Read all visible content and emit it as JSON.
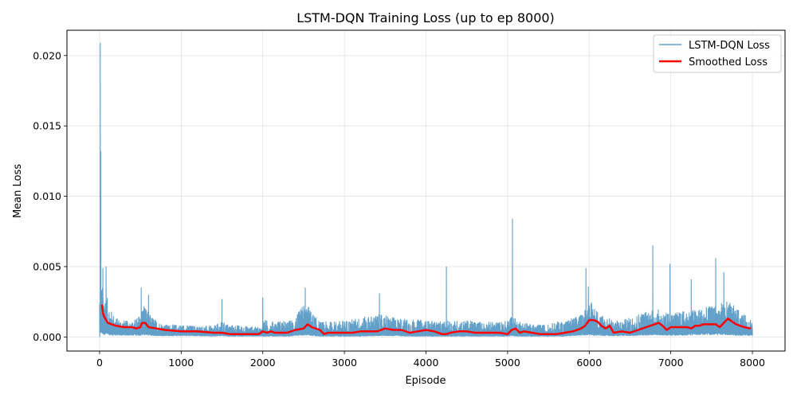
{
  "chart_data": {
    "type": "line",
    "title": "LSTM-DQN Training Loss (up to ep 8000)",
    "xlabel": "Episode",
    "ylabel": "Mean Loss",
    "xlim": [
      -400,
      8400
    ],
    "ylim": [
      -0.001,
      0.0218
    ],
    "xticks": [
      0,
      1000,
      2000,
      3000,
      4000,
      5000,
      6000,
      7000,
      8000
    ],
    "xtick_labels": [
      "0",
      "1000",
      "2000",
      "3000",
      "4000",
      "5000",
      "6000",
      "7000",
      "8000"
    ],
    "yticks": [
      0.0,
      0.005,
      0.01,
      0.015,
      0.02
    ],
    "ytick_labels": [
      "0.000",
      "0.005",
      "0.010",
      "0.015",
      "0.020"
    ],
    "grid": true,
    "legend_position": "top-right",
    "series": [
      {
        "name": "LSTM-DQN Loss",
        "color": "#1f77b4",
        "alpha": 0.7,
        "band": {
          "x": [
            0,
            10,
            20,
            50,
            100,
            150,
            200,
            300,
            400,
            500,
            540,
            600,
            700,
            800,
            1000,
            1200,
            1400,
            1500,
            1600,
            1800,
            1990,
            2000,
            2100,
            2200,
            2300,
            2400,
            2500,
            2550,
            2600,
            2700,
            2800,
            3000,
            3200,
            3400,
            3500,
            3600,
            3800,
            4000,
            4200,
            4300,
            4500,
            4700,
            4900,
            5000,
            5050,
            5100,
            5200,
            5300,
            5400,
            5500,
            5600,
            5700,
            5800,
            5900,
            6000,
            6050,
            6100,
            6200,
            6300,
            6400,
            6500,
            6600,
            6700,
            6800,
            6900,
            7000,
            7100,
            7200,
            7300,
            7400,
            7500,
            7600,
            7700,
            7800,
            7900,
            8000
          ],
          "high": [
            0.0034,
            0.004,
            0.0038,
            0.0035,
            0.0027,
            0.0018,
            0.0014,
            0.0012,
            0.0011,
            0.0016,
            0.0026,
            0.0017,
            0.0012,
            0.0009,
            0.0009,
            0.0008,
            0.0008,
            0.0011,
            0.0009,
            0.0008,
            0.0007,
            0.0013,
            0.0011,
            0.0012,
            0.0011,
            0.0014,
            0.0024,
            0.0023,
            0.0018,
            0.0011,
            0.0011,
            0.0012,
            0.0014,
            0.0016,
            0.0016,
            0.0014,
            0.0013,
            0.0012,
            0.0011,
            0.0012,
            0.0012,
            0.0011,
            0.0011,
            0.0012,
            0.0017,
            0.0013,
            0.0011,
            0.0009,
            0.0009,
            0.0009,
            0.0011,
            0.0012,
            0.0014,
            0.0016,
            0.0026,
            0.0024,
            0.0019,
            0.0015,
            0.0012,
            0.0012,
            0.0014,
            0.0017,
            0.0019,
            0.0021,
            0.0018,
            0.0017,
            0.0018,
            0.0019,
            0.002,
            0.0021,
            0.0022,
            0.0024,
            0.0026,
            0.0021,
            0.0016,
            0.0014
          ],
          "low": [
            0.0012,
            0.0007,
            0.0006,
            0.0005,
            0.0004,
            0.0003,
            0.0003,
            0.0003,
            0.0003,
            0.0003,
            0.0004,
            0.0003,
            0.0002,
            0.0002,
            0.0002,
            0.0002,
            0.0001,
            0.0002,
            0.0001,
            0.0001,
            0.0001,
            0.0001,
            0.0001,
            0.0001,
            0.0001,
            0.0002,
            0.0003,
            0.0003,
            0.0002,
            0.0001,
            0.0001,
            0.0001,
            0.0001,
            0.0002,
            0.0002,
            0.0002,
            0.0001,
            0.0001,
            0.0001,
            0.0001,
            0.0001,
            0.0001,
            0.0001,
            0.0001,
            0.0002,
            0.0001,
            0.0001,
            0.0001,
            0.0001,
            0.0001,
            0.0001,
            0.0001,
            0.0002,
            0.0003,
            0.0004,
            0.0003,
            0.0003,
            0.0002,
            0.0002,
            0.0002,
            0.0002,
            0.0003,
            0.0003,
            0.0004,
            0.0003,
            0.0003,
            0.0003,
            0.0003,
            0.0004,
            0.0004,
            0.0004,
            0.0004,
            0.0004,
            0.0003,
            0.0003,
            0.0002
          ]
        },
        "spikes": [
          {
            "x": 2,
            "y": 0.0
          },
          {
            "x": 8,
            "y": 0.0209
          },
          {
            "x": 14,
            "y": 0.0132
          },
          {
            "x": 40,
            "y": 0.0049
          },
          {
            "x": 80,
            "y": 0.005
          },
          {
            "x": 510,
            "y": 0.0035
          },
          {
            "x": 600,
            "y": 0.003
          },
          {
            "x": 1500,
            "y": 0.0027
          },
          {
            "x": 2000,
            "y": 0.0028
          },
          {
            "x": 2520,
            "y": 0.0035
          },
          {
            "x": 3430,
            "y": 0.0031
          },
          {
            "x": 4250,
            "y": 0.005
          },
          {
            "x": 5060,
            "y": 0.0084
          },
          {
            "x": 5960,
            "y": 0.0049
          },
          {
            "x": 5990,
            "y": 0.0036
          },
          {
            "x": 6780,
            "y": 0.0065
          },
          {
            "x": 6990,
            "y": 0.0052
          },
          {
            "x": 7250,
            "y": 0.0041
          },
          {
            "x": 7550,
            "y": 0.0056
          },
          {
            "x": 7650,
            "y": 0.0046
          }
        ]
      },
      {
        "name": "Smoothed Loss",
        "color": "#ff0000",
        "x": [
          30,
          40,
          60,
          100,
          150,
          200,
          300,
          400,
          450,
          500,
          520,
          560,
          600,
          700,
          800,
          1000,
          1200,
          1400,
          1500,
          1600,
          1800,
          1950,
          2000,
          2050,
          2100,
          2150,
          2200,
          2300,
          2400,
          2500,
          2550,
          2600,
          2700,
          2750,
          2800,
          2900,
          3000,
          3100,
          3200,
          3300,
          3400,
          3500,
          3600,
          3700,
          3800,
          3900,
          4000,
          4100,
          4200,
          4250,
          4300,
          4400,
          4500,
          4600,
          4700,
          4800,
          4900,
          5000,
          5050,
          5100,
          5150,
          5200,
          5300,
          5400,
          5500,
          5600,
          5700,
          5800,
          5900,
          5950,
          6000,
          6050,
          6100,
          6150,
          6200,
          6250,
          6300,
          6400,
          6500,
          6600,
          6700,
          6800,
          6850,
          6900,
          6950,
          7000,
          7050,
          7100,
          7200,
          7250,
          7300,
          7350,
          7400,
          7450,
          7500,
          7550,
          7600,
          7650,
          7700,
          7750,
          7800,
          7900,
          7980
        ],
        "values": [
          0.0023,
          0.0017,
          0.0014,
          0.001,
          0.0009,
          0.0008,
          0.0007,
          0.0007,
          0.0006,
          0.0007,
          0.001,
          0.001,
          0.0007,
          0.0006,
          0.0005,
          0.0004,
          0.0004,
          0.0003,
          0.0003,
          0.0002,
          0.0002,
          0.0002,
          0.0004,
          0.0003,
          0.0004,
          0.0003,
          0.0003,
          0.0003,
          0.0005,
          0.0006,
          0.0009,
          0.0007,
          0.0005,
          0.0002,
          0.0003,
          0.0003,
          0.0003,
          0.0003,
          0.0004,
          0.0004,
          0.0004,
          0.0006,
          0.0005,
          0.0005,
          0.0003,
          0.0004,
          0.0005,
          0.0004,
          0.0002,
          0.0002,
          0.0003,
          0.0004,
          0.0004,
          0.0003,
          0.0003,
          0.0003,
          0.0003,
          0.0002,
          0.0005,
          0.0006,
          0.0003,
          0.0004,
          0.0003,
          0.0002,
          0.0002,
          0.0002,
          0.0003,
          0.0004,
          0.0006,
          0.0008,
          0.0012,
          0.0012,
          0.0011,
          0.0008,
          0.0006,
          0.0008,
          0.0003,
          0.0004,
          0.0003,
          0.0005,
          0.0007,
          0.0009,
          0.001,
          0.0008,
          0.0005,
          0.0007,
          0.0007,
          0.0007,
          0.0007,
          0.0006,
          0.0008,
          0.0008,
          0.0009,
          0.0009,
          0.0009,
          0.0009,
          0.0007,
          0.001,
          0.0013,
          0.0011,
          0.0009,
          0.0007,
          0.0006
        ]
      }
    ]
  }
}
